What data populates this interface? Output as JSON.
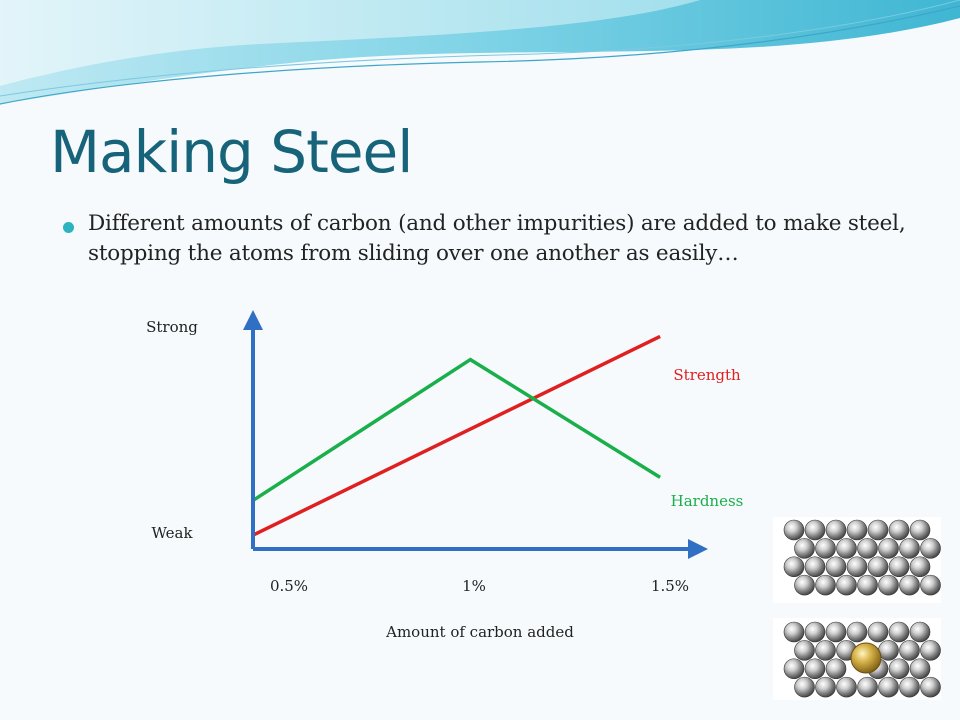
{
  "slide": {
    "title": "Making Steel",
    "bullet": "Different amounts of carbon (and other impurities) are added to make steel, stopping the atoms from sliding over one another as easily…"
  },
  "colors": {
    "title": "#17647a",
    "bullet": "#2bb3bf",
    "axis": "#2f6fc4",
    "strength": "#e02020",
    "hardness": "#1aaf4a"
  },
  "chart_data": {
    "type": "line",
    "xlabel": "Amount of carbon added",
    "x_ticks": [
      "0.5%",
      "1%",
      "1.5%"
    ],
    "y_ticks": [
      "Weak",
      "Strong"
    ],
    "xlim": [
      0.45,
      1.5
    ],
    "ylim": [
      0,
      10
    ],
    "grid": false,
    "series": [
      {
        "name": "Strength",
        "color": "#e02020",
        "points": [
          [
            0.45,
            0.6
          ],
          [
            1.48,
            9.2
          ]
        ]
      },
      {
        "name": "Hardness",
        "color": "#1aaf4a",
        "points": [
          [
            0.45,
            2.1
          ],
          [
            1.0,
            8.2
          ],
          [
            1.48,
            3.1
          ]
        ]
      }
    ]
  },
  "illustration": {
    "top_panel": {
      "atoms": "pure-iron-lattice",
      "impurity": false
    },
    "bottom_panel": {
      "atoms": "iron-lattice-with-carbon",
      "impurity": true
    }
  }
}
